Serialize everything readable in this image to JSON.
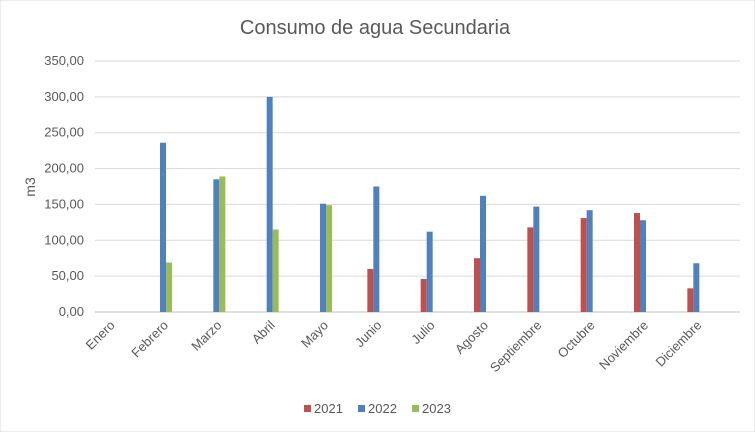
{
  "chart_data": {
    "type": "bar",
    "title": "Consumo de agua Secundaria",
    "xlabel": "",
    "ylabel": "m3",
    "ylim": [
      0,
      350
    ],
    "yticks": [
      "0,00",
      "50,00",
      "100,00",
      "150,00",
      "200,00",
      "250,00",
      "300,00",
      "350,00"
    ],
    "grid": true,
    "legend_position": "bottom",
    "categories": [
      "Enero",
      "Febrero",
      "Marzo",
      "Abril",
      "Mayo",
      "Junio",
      "Julio",
      "Agosto",
      "Septiembre",
      "Octubre",
      "Noviembre",
      "Diciembre"
    ],
    "series": [
      {
        "name": "2021",
        "color": "#C0504D",
        "values": [
          null,
          null,
          null,
          null,
          null,
          60,
          46,
          75,
          118,
          131,
          138,
          33
        ]
      },
      {
        "name": "2022",
        "color": "#4F81BD",
        "values": [
          null,
          236,
          185,
          300,
          151,
          175,
          112,
          162,
          147,
          142,
          128,
          68
        ]
      },
      {
        "name": "2023",
        "color": "#9BBB59",
        "values": [
          null,
          69,
          189,
          115,
          149,
          null,
          null,
          null,
          null,
          null,
          null,
          null
        ]
      }
    ]
  }
}
